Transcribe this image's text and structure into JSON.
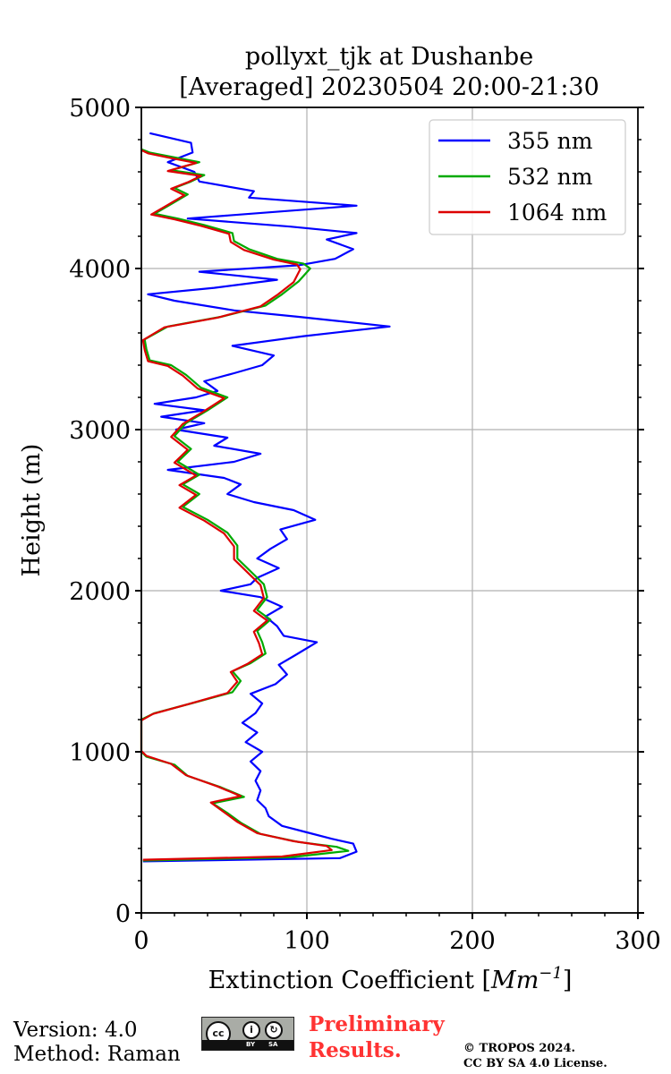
{
  "chart_data": {
    "type": "line",
    "title_line1": "pollyxt_tjk at Dushanbe",
    "title_line2": "[Averaged] 20230504 20:00-21:30",
    "xlabel_main": "Extinction Coefficient [",
    "xlabel_unit": "Mm",
    "xlabel_exp": "−1",
    "xlabel_close": "]",
    "ylabel": "Height (m)",
    "xlim": [
      0,
      300
    ],
    "ylim": [
      0,
      5000
    ],
    "xticks": [
      0,
      100,
      200,
      300
    ],
    "xtick_labels": [
      "0",
      "100",
      "200",
      "300"
    ],
    "yticks": [
      0,
      1000,
      2000,
      3000,
      4000,
      5000
    ],
    "ytick_labels": [
      "0",
      "1000",
      "2000",
      "3000",
      "4000",
      "5000"
    ],
    "grid": true,
    "legend_position": "top-right",
    "series": [
      {
        "name": "355 nm",
        "color": "#0000ff",
        "points": [
          [
            1,
            320
          ],
          [
            120,
            340
          ],
          [
            130,
            380
          ],
          [
            128,
            430
          ],
          [
            115,
            460
          ],
          [
            100,
            500
          ],
          [
            85,
            540
          ],
          [
            77,
            600
          ],
          [
            75,
            650
          ],
          [
            70,
            700
          ],
          [
            72,
            760
          ],
          [
            69,
            820
          ],
          [
            72,
            880
          ],
          [
            66,
            940
          ],
          [
            73,
            1000
          ],
          [
            63,
            1060
          ],
          [
            70,
            1120
          ],
          [
            61,
            1180
          ],
          [
            69,
            1240
          ],
          [
            73,
            1300
          ],
          [
            66,
            1360
          ],
          [
            81,
            1420
          ],
          [
            88,
            1480
          ],
          [
            83,
            1540
          ],
          [
            93,
            1600
          ],
          [
            106,
            1680
          ],
          [
            86,
            1720
          ],
          [
            82,
            1780
          ],
          [
            75,
            1840
          ],
          [
            85,
            1900
          ],
          [
            72,
            1960
          ],
          [
            48,
            2000
          ],
          [
            66,
            2040
          ],
          [
            70,
            2080
          ],
          [
            83,
            2140
          ],
          [
            70,
            2200
          ],
          [
            78,
            2260
          ],
          [
            88,
            2320
          ],
          [
            84,
            2380
          ],
          [
            105,
            2440
          ],
          [
            92,
            2500
          ],
          [
            68,
            2550
          ],
          [
            52,
            2600
          ],
          [
            60,
            2660
          ],
          [
            50,
            2700
          ],
          [
            16,
            2750
          ],
          [
            56,
            2800
          ],
          [
            72,
            2850
          ],
          [
            44,
            2900
          ],
          [
            52,
            2950
          ],
          [
            21,
            3000
          ],
          [
            38,
            3040
          ],
          [
            12,
            3080
          ],
          [
            38,
            3120
          ],
          [
            8,
            3160
          ],
          [
            33,
            3200
          ],
          [
            46,
            3240
          ],
          [
            38,
            3300
          ],
          [
            56,
            3350
          ],
          [
            73,
            3400
          ],
          [
            80,
            3460
          ],
          [
            55,
            3520
          ],
          [
            98,
            3580
          ],
          [
            150,
            3640
          ],
          [
            95,
            3700
          ],
          [
            56,
            3740
          ],
          [
            20,
            3800
          ],
          [
            4,
            3840
          ],
          [
            44,
            3880
          ],
          [
            82,
            3930
          ],
          [
            35,
            3980
          ],
          [
            95,
            4020
          ],
          [
            117,
            4060
          ],
          [
            128,
            4120
          ],
          [
            112,
            4180
          ],
          [
            130,
            4220
          ],
          [
            90,
            4260
          ],
          [
            28,
            4310
          ],
          [
            130,
            4390
          ],
          [
            65,
            4440
          ],
          [
            68,
            4480
          ],
          [
            35,
            4540
          ],
          [
            32,
            4600
          ],
          [
            16,
            4660
          ],
          [
            31,
            4720
          ],
          [
            30,
            4780
          ],
          [
            5,
            4840
          ]
        ]
      },
      {
        "name": "532 nm",
        "color": "#00aa00",
        "points": [
          [
            1,
            325
          ],
          [
            90,
            345
          ],
          [
            125,
            385
          ],
          [
            118,
            410
          ],
          [
            95,
            440
          ],
          [
            72,
            490
          ],
          [
            60,
            560
          ],
          [
            52,
            620
          ],
          [
            43,
            680
          ],
          [
            62,
            720
          ],
          [
            48,
            780
          ],
          [
            28,
            850
          ],
          [
            20,
            920
          ],
          [
            3,
            970
          ],
          [
            0,
            1000
          ],
          [
            0,
            1200
          ],
          [
            8,
            1240
          ],
          [
            30,
            1300
          ],
          [
            55,
            1370
          ],
          [
            60,
            1440
          ],
          [
            55,
            1500
          ],
          [
            66,
            1550
          ],
          [
            75,
            1610
          ],
          [
            73,
            1680
          ],
          [
            70,
            1750
          ],
          [
            78,
            1820
          ],
          [
            70,
            1880
          ],
          [
            76,
            1960
          ],
          [
            74,
            2040
          ],
          [
            68,
            2100
          ],
          [
            58,
            2200
          ],
          [
            58,
            2280
          ],
          [
            52,
            2360
          ],
          [
            40,
            2440
          ],
          [
            25,
            2520
          ],
          [
            35,
            2600
          ],
          [
            25,
            2660
          ],
          [
            35,
            2720
          ],
          [
            22,
            2800
          ],
          [
            30,
            2880
          ],
          [
            20,
            2960
          ],
          [
            27,
            3040
          ],
          [
            40,
            3120
          ],
          [
            52,
            3200
          ],
          [
            36,
            3260
          ],
          [
            27,
            3340
          ],
          [
            18,
            3400
          ],
          [
            5,
            3430
          ],
          [
            3,
            3500
          ],
          [
            2,
            3560
          ],
          [
            16,
            3640
          ],
          [
            48,
            3700
          ],
          [
            75,
            3770
          ],
          [
            85,
            3840
          ],
          [
            95,
            3920
          ],
          [
            102,
            4000
          ],
          [
            98,
            4030
          ],
          [
            82,
            4060
          ],
          [
            65,
            4120
          ],
          [
            56,
            4170
          ],
          [
            55,
            4220
          ],
          [
            38,
            4270
          ],
          [
            22,
            4310
          ],
          [
            8,
            4340
          ],
          [
            18,
            4400
          ],
          [
            28,
            4460
          ],
          [
            20,
            4500
          ],
          [
            30,
            4540
          ],
          [
            38,
            4580
          ],
          [
            18,
            4610
          ],
          [
            35,
            4660
          ],
          [
            20,
            4690
          ],
          [
            5,
            4720
          ],
          [
            0,
            4740
          ]
        ]
      },
      {
        "name": "1064 nm",
        "color": "#dd0000",
        "points": [
          [
            1,
            330
          ],
          [
            85,
            350
          ],
          [
            115,
            390
          ],
          [
            112,
            415
          ],
          [
            92,
            445
          ],
          [
            70,
            495
          ],
          [
            58,
            565
          ],
          [
            50,
            625
          ],
          [
            42,
            685
          ],
          [
            60,
            725
          ],
          [
            46,
            785
          ],
          [
            27,
            855
          ],
          [
            18,
            925
          ],
          [
            3,
            975
          ],
          [
            0,
            1005
          ],
          [
            0,
            1195
          ],
          [
            7,
            1235
          ],
          [
            28,
            1295
          ],
          [
            52,
            1365
          ],
          [
            58,
            1435
          ],
          [
            54,
            1495
          ],
          [
            64,
            1545
          ],
          [
            73,
            1605
          ],
          [
            71,
            1675
          ],
          [
            68,
            1745
          ],
          [
            76,
            1815
          ],
          [
            68,
            1875
          ],
          [
            74,
            1955
          ],
          [
            72,
            2035
          ],
          [
            66,
            2095
          ],
          [
            56,
            2195
          ],
          [
            56,
            2275
          ],
          [
            50,
            2355
          ],
          [
            38,
            2435
          ],
          [
            23,
            2515
          ],
          [
            33,
            2595
          ],
          [
            23,
            2655
          ],
          [
            33,
            2715
          ],
          [
            20,
            2795
          ],
          [
            28,
            2875
          ],
          [
            18,
            2955
          ],
          [
            25,
            3035
          ],
          [
            38,
            3115
          ],
          [
            50,
            3195
          ],
          [
            34,
            3255
          ],
          [
            25,
            3335
          ],
          [
            16,
            3395
          ],
          [
            4,
            3425
          ],
          [
            2,
            3495
          ],
          [
            1,
            3555
          ],
          [
            14,
            3635
          ],
          [
            46,
            3695
          ],
          [
            72,
            3765
          ],
          [
            82,
            3835
          ],
          [
            92,
            3915
          ],
          [
            96,
            3995
          ],
          [
            94,
            4025
          ],
          [
            80,
            4055
          ],
          [
            62,
            4115
          ],
          [
            54,
            4165
          ],
          [
            53,
            4215
          ],
          [
            36,
            4265
          ],
          [
            20,
            4305
          ],
          [
            6,
            4335
          ],
          [
            16,
            4395
          ],
          [
            26,
            4455
          ],
          [
            18,
            4495
          ],
          [
            28,
            4535
          ],
          [
            36,
            4575
          ],
          [
            16,
            4605
          ],
          [
            33,
            4655
          ],
          [
            18,
            4685
          ],
          [
            4,
            4715
          ],
          [
            0,
            4735
          ]
        ]
      }
    ]
  },
  "footer": {
    "version": "Version: 4.0",
    "method": "Method: Raman",
    "preliminary_line1": "Preliminary",
    "preliminary_line2": "Results.",
    "copyright_line1": "© TROPOS 2024.",
    "copyright_line2": "CC BY SA 4.0 License.",
    "license_badge": {
      "cc": "cc",
      "by": "BY",
      "sa": "SA"
    }
  }
}
